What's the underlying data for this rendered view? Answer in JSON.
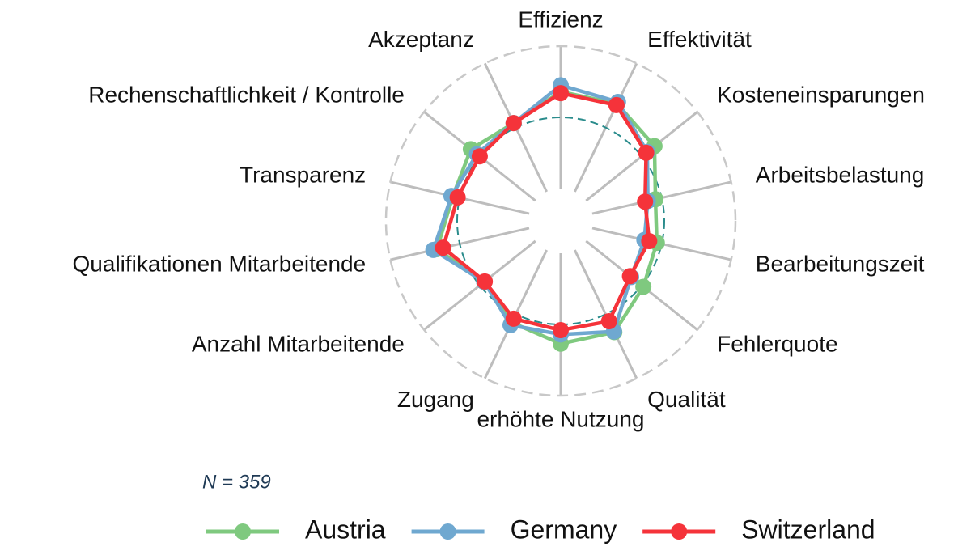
{
  "chart_data": {
    "type": "radar",
    "categories": [
      "Effizienz",
      "Effektivität",
      "Kosteneinsparungen",
      "Arbeitsbelastung",
      "Bearbeitungszeit",
      "Fehlerquote",
      "Qualität",
      "erhöhte Nutzung",
      "Zugang",
      "Anzahl Mitarbeitende",
      "Qualifikationen Mitarbeitende",
      "Transparenz",
      "Rechenschaftlichkeit / Kontrolle",
      "Akzeptanz"
    ],
    "series": [
      {
        "name": "Austria",
        "color": "#7fc97f",
        "values": [
          0.36,
          0.37,
          0.23,
          -0.09,
          -0.07,
          0.03,
          0.28,
          0.27,
          0.13,
          -0.08,
          0.33,
          0.1,
          0.16,
          0.07
        ]
      },
      {
        "name": "Germany",
        "color": "#6fa8d0",
        "values": [
          0.45,
          0.4,
          0.1,
          -0.2,
          -0.25,
          -0.19,
          0.27,
          0.14,
          0.17,
          -0.08,
          0.38,
          0.12,
          0.05,
          0.07
        ]
      },
      {
        "name": "Switzerland",
        "color": "#f5333a",
        "values": [
          0.34,
          0.35,
          0.08,
          -0.24,
          -0.18,
          -0.21,
          0.11,
          0.08,
          0.07,
          -0.09,
          0.24,
          0.03,
          0.0,
          0.07
        ]
      }
    ],
    "ylim": [
      -1,
      1
    ],
    "yticks": [
      0,
      1
    ],
    "caption": "N = 359",
    "legend": "bottom"
  }
}
